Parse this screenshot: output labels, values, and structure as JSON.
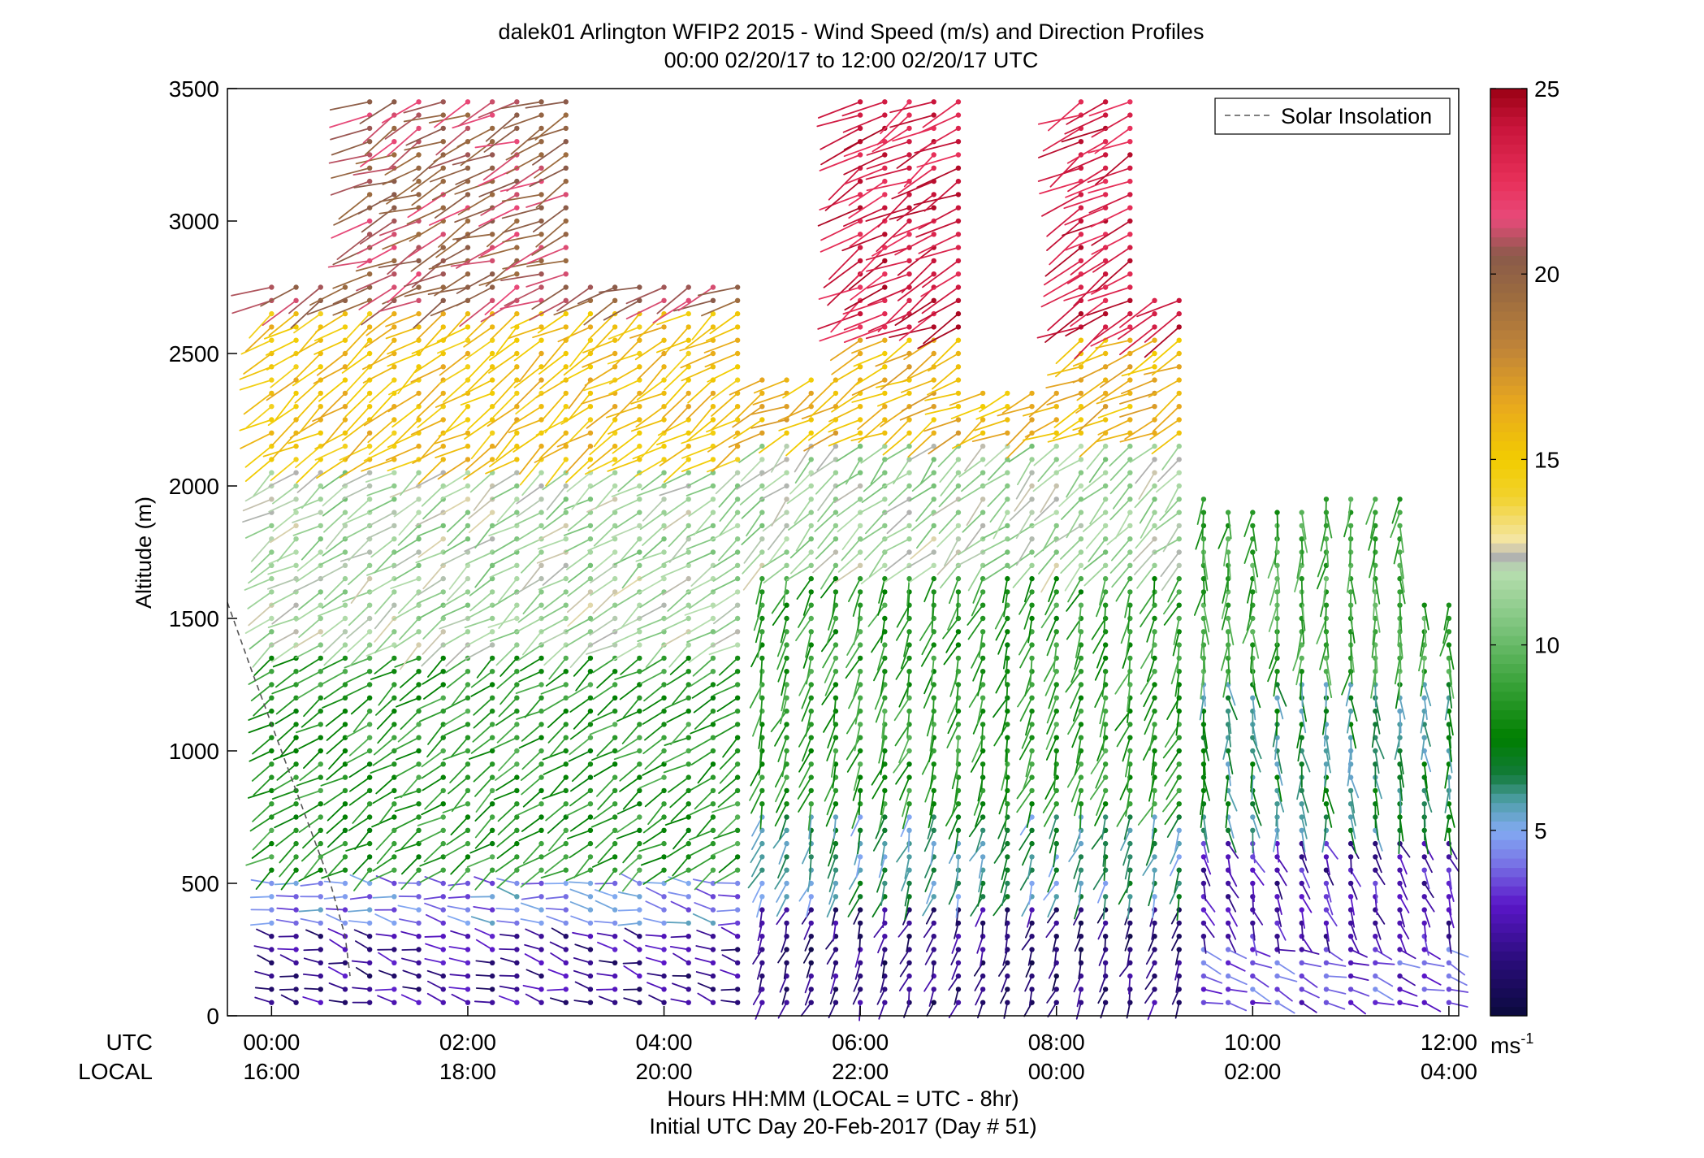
{
  "chart_data": {
    "type": "wind-barb profile (time-altitude)",
    "title": "dalek01 Arlington WFIP2 2015 - Wind Speed (m/s) and Direction Profiles",
    "subtitle": "00:00 02/20/17 to 12:00 02/20/17  UTC",
    "ylabel": "Altitude (m)",
    "xlabel": "Hours HH:MM  (LOCAL = UTC - 8hr)",
    "xlabel2": "Initial UTC Day 20-Feb-2017 (Day # 51)",
    "row_label_utc": "UTC",
    "row_label_local": "LOCAL",
    "ylim": [
      0,
      3500
    ],
    "xlim_hours": [
      -0.45,
      12.1
    ],
    "y_ticks": [
      0,
      500,
      1000,
      1500,
      2000,
      2500,
      3000,
      3500
    ],
    "x_ticks": [
      {
        "hour": 0,
        "utc": "00:00",
        "local": "16:00"
      },
      {
        "hour": 2,
        "utc": "02:00",
        "local": "18:00"
      },
      {
        "hour": 4,
        "utc": "04:00",
        "local": "20:00"
      },
      {
        "hour": 6,
        "utc": "06:00",
        "local": "22:00"
      },
      {
        "hour": 8,
        "utc": "08:00",
        "local": "00:00"
      },
      {
        "hour": 10,
        "utc": "10:00",
        "local": "02:00"
      },
      {
        "hour": 12,
        "utc": "12:00",
        "local": "04:00"
      }
    ],
    "colorbar": {
      "range": [
        0,
        25
      ],
      "ticks": [
        5,
        10,
        15,
        20,
        25
      ],
      "unit_label": "ms",
      "unit_exponent": "-1",
      "stops": [
        {
          "v": 0,
          "c": "#0a0a3c"
        },
        {
          "v": 1.5,
          "c": "#2a0c7a"
        },
        {
          "v": 3,
          "c": "#5a16c8"
        },
        {
          "v": 4.2,
          "c": "#7a7ae8"
        },
        {
          "v": 5,
          "c": "#82aaf2"
        },
        {
          "v": 5.8,
          "c": "#4f9fa8"
        },
        {
          "v": 6.5,
          "c": "#127a3a"
        },
        {
          "v": 7.5,
          "c": "#007f00"
        },
        {
          "v": 9,
          "c": "#3aa33a"
        },
        {
          "v": 10.5,
          "c": "#7cc47c"
        },
        {
          "v": 12,
          "c": "#b8deb0"
        },
        {
          "v": 12.4,
          "c": "#b0b0b0"
        },
        {
          "v": 12.8,
          "c": "#f4e6a8"
        },
        {
          "v": 14,
          "c": "#f2d22c"
        },
        {
          "v": 15,
          "c": "#f2cc00"
        },
        {
          "v": 16.5,
          "c": "#e8a81e"
        },
        {
          "v": 18,
          "c": "#c08438"
        },
        {
          "v": 19.5,
          "c": "#9a6a40"
        },
        {
          "v": 20.5,
          "c": "#8a5a4a"
        },
        {
          "v": 21.5,
          "c": "#e84a7a"
        },
        {
          "v": 22.5,
          "c": "#e8305a"
        },
        {
          "v": 24,
          "c": "#c8143a"
        },
        {
          "v": 25,
          "c": "#9a0014"
        }
      ]
    },
    "profiles": {
      "time_step_hours": 0.25,
      "first_hour": 0,
      "last_hour": 12,
      "height_step_m": 50,
      "columns": [
        {
          "from_hour": 0.0,
          "to_hour": 0.75,
          "top_m": 2750
        },
        {
          "from_hour": 1.0,
          "to_hour": 2.25,
          "top_m": 3450
        },
        {
          "from_hour": 2.5,
          "to_hour": 3.0,
          "top_m": 3450
        },
        {
          "from_hour": 3.25,
          "to_hour": 4.75,
          "top_m": 2750
        },
        {
          "from_hour": 5.0,
          "to_hour": 5.75,
          "top_m": 2400
        },
        {
          "from_hour": 6.0,
          "to_hour": 7.0,
          "top_m": 3450
        },
        {
          "from_hour": 7.25,
          "to_hour": 8.0,
          "top_m": 2350
        },
        {
          "from_hour": 8.25,
          "to_hour": 8.75,
          "top_m": 3450
        },
        {
          "from_hour": 9.0,
          "to_hour": 9.5,
          "top_m": 2700
        },
        {
          "from_hour": 9.75,
          "to_hour": 10.5,
          "top_m": 1900
        },
        {
          "from_hour": 10.75,
          "to_hour": 11.5,
          "top_m": 1950
        },
        {
          "from_hour": 11.75,
          "to_hour": 12.0,
          "top_m": 1550
        }
      ],
      "layers": [
        {
          "hours": [
            0,
            5
          ],
          "from_m": 0,
          "to_m": 350,
          "speed": 2.0,
          "dir_deg": 285
        },
        {
          "hours": [
            0,
            5
          ],
          "from_m": 350,
          "to_m": 550,
          "speed": 4.5,
          "dir_deg": 280
        },
        {
          "hours": [
            0,
            5
          ],
          "from_m": 550,
          "to_m": 1400,
          "speed": 8.5,
          "dir_deg": 235
        },
        {
          "hours": [
            0,
            5
          ],
          "from_m": 1400,
          "to_m": 2100,
          "speed": 11.5,
          "dir_deg": 235
        },
        {
          "hours": [
            0,
            5
          ],
          "from_m": 2100,
          "to_m": 2700,
          "speed": 15.5,
          "dir_deg": 235
        },
        {
          "hours": [
            0,
            5
          ],
          "from_m": 2700,
          "to_m": 3500,
          "speed": 20.5,
          "dir_deg": 245
        },
        {
          "hours": [
            5,
            9.5
          ],
          "from_m": 0,
          "to_m": 450,
          "speed": 1.5,
          "dir_deg": 200
        },
        {
          "hours": [
            5,
            9.5
          ],
          "from_m": 450,
          "to_m": 800,
          "speed": 6.0,
          "dir_deg": 200
        },
        {
          "hours": [
            5,
            9.5
          ],
          "from_m": 800,
          "to_m": 1700,
          "speed": 8.5,
          "dir_deg": 200
        },
        {
          "hours": [
            5,
            9.5
          ],
          "from_m": 1700,
          "to_m": 2200,
          "speed": 11.5,
          "dir_deg": 225
        },
        {
          "hours": [
            5,
            9.5
          ],
          "from_m": 2200,
          "to_m": 2600,
          "speed": 16.0,
          "dir_deg": 240
        },
        {
          "hours": [
            5,
            9.5
          ],
          "from_m": 2600,
          "to_m": 3500,
          "speed": 23.5,
          "dir_deg": 240
        },
        {
          "hours": [
            9.5,
            12.1
          ],
          "from_m": 0,
          "to_m": 300,
          "speed": 3.5,
          "dir_deg": 110
        },
        {
          "hours": [
            9.5,
            12.1
          ],
          "from_m": 300,
          "to_m": 700,
          "speed": 2.5,
          "dir_deg": 160
        },
        {
          "hours": [
            9.5,
            12.1
          ],
          "from_m": 700,
          "to_m": 1300,
          "speed": 6.5,
          "dir_deg": 175
        },
        {
          "hours": [
            9.5,
            12.1
          ],
          "from_m": 1300,
          "to_m": 2000,
          "speed": 9.0,
          "dir_deg": 185
        }
      ]
    },
    "series": [
      {
        "name": "Solar Insolation",
        "style": "dashed",
        "color": "#555555",
        "points": [
          [
            -0.45,
            1560
          ],
          [
            -0.2,
            1300
          ],
          [
            0.0,
            1100
          ],
          [
            0.3,
            800
          ],
          [
            0.6,
            500
          ],
          [
            0.75,
            300
          ],
          [
            0.8,
            150
          ]
        ]
      }
    ],
    "legend_position": "top-right",
    "grid": false
  }
}
